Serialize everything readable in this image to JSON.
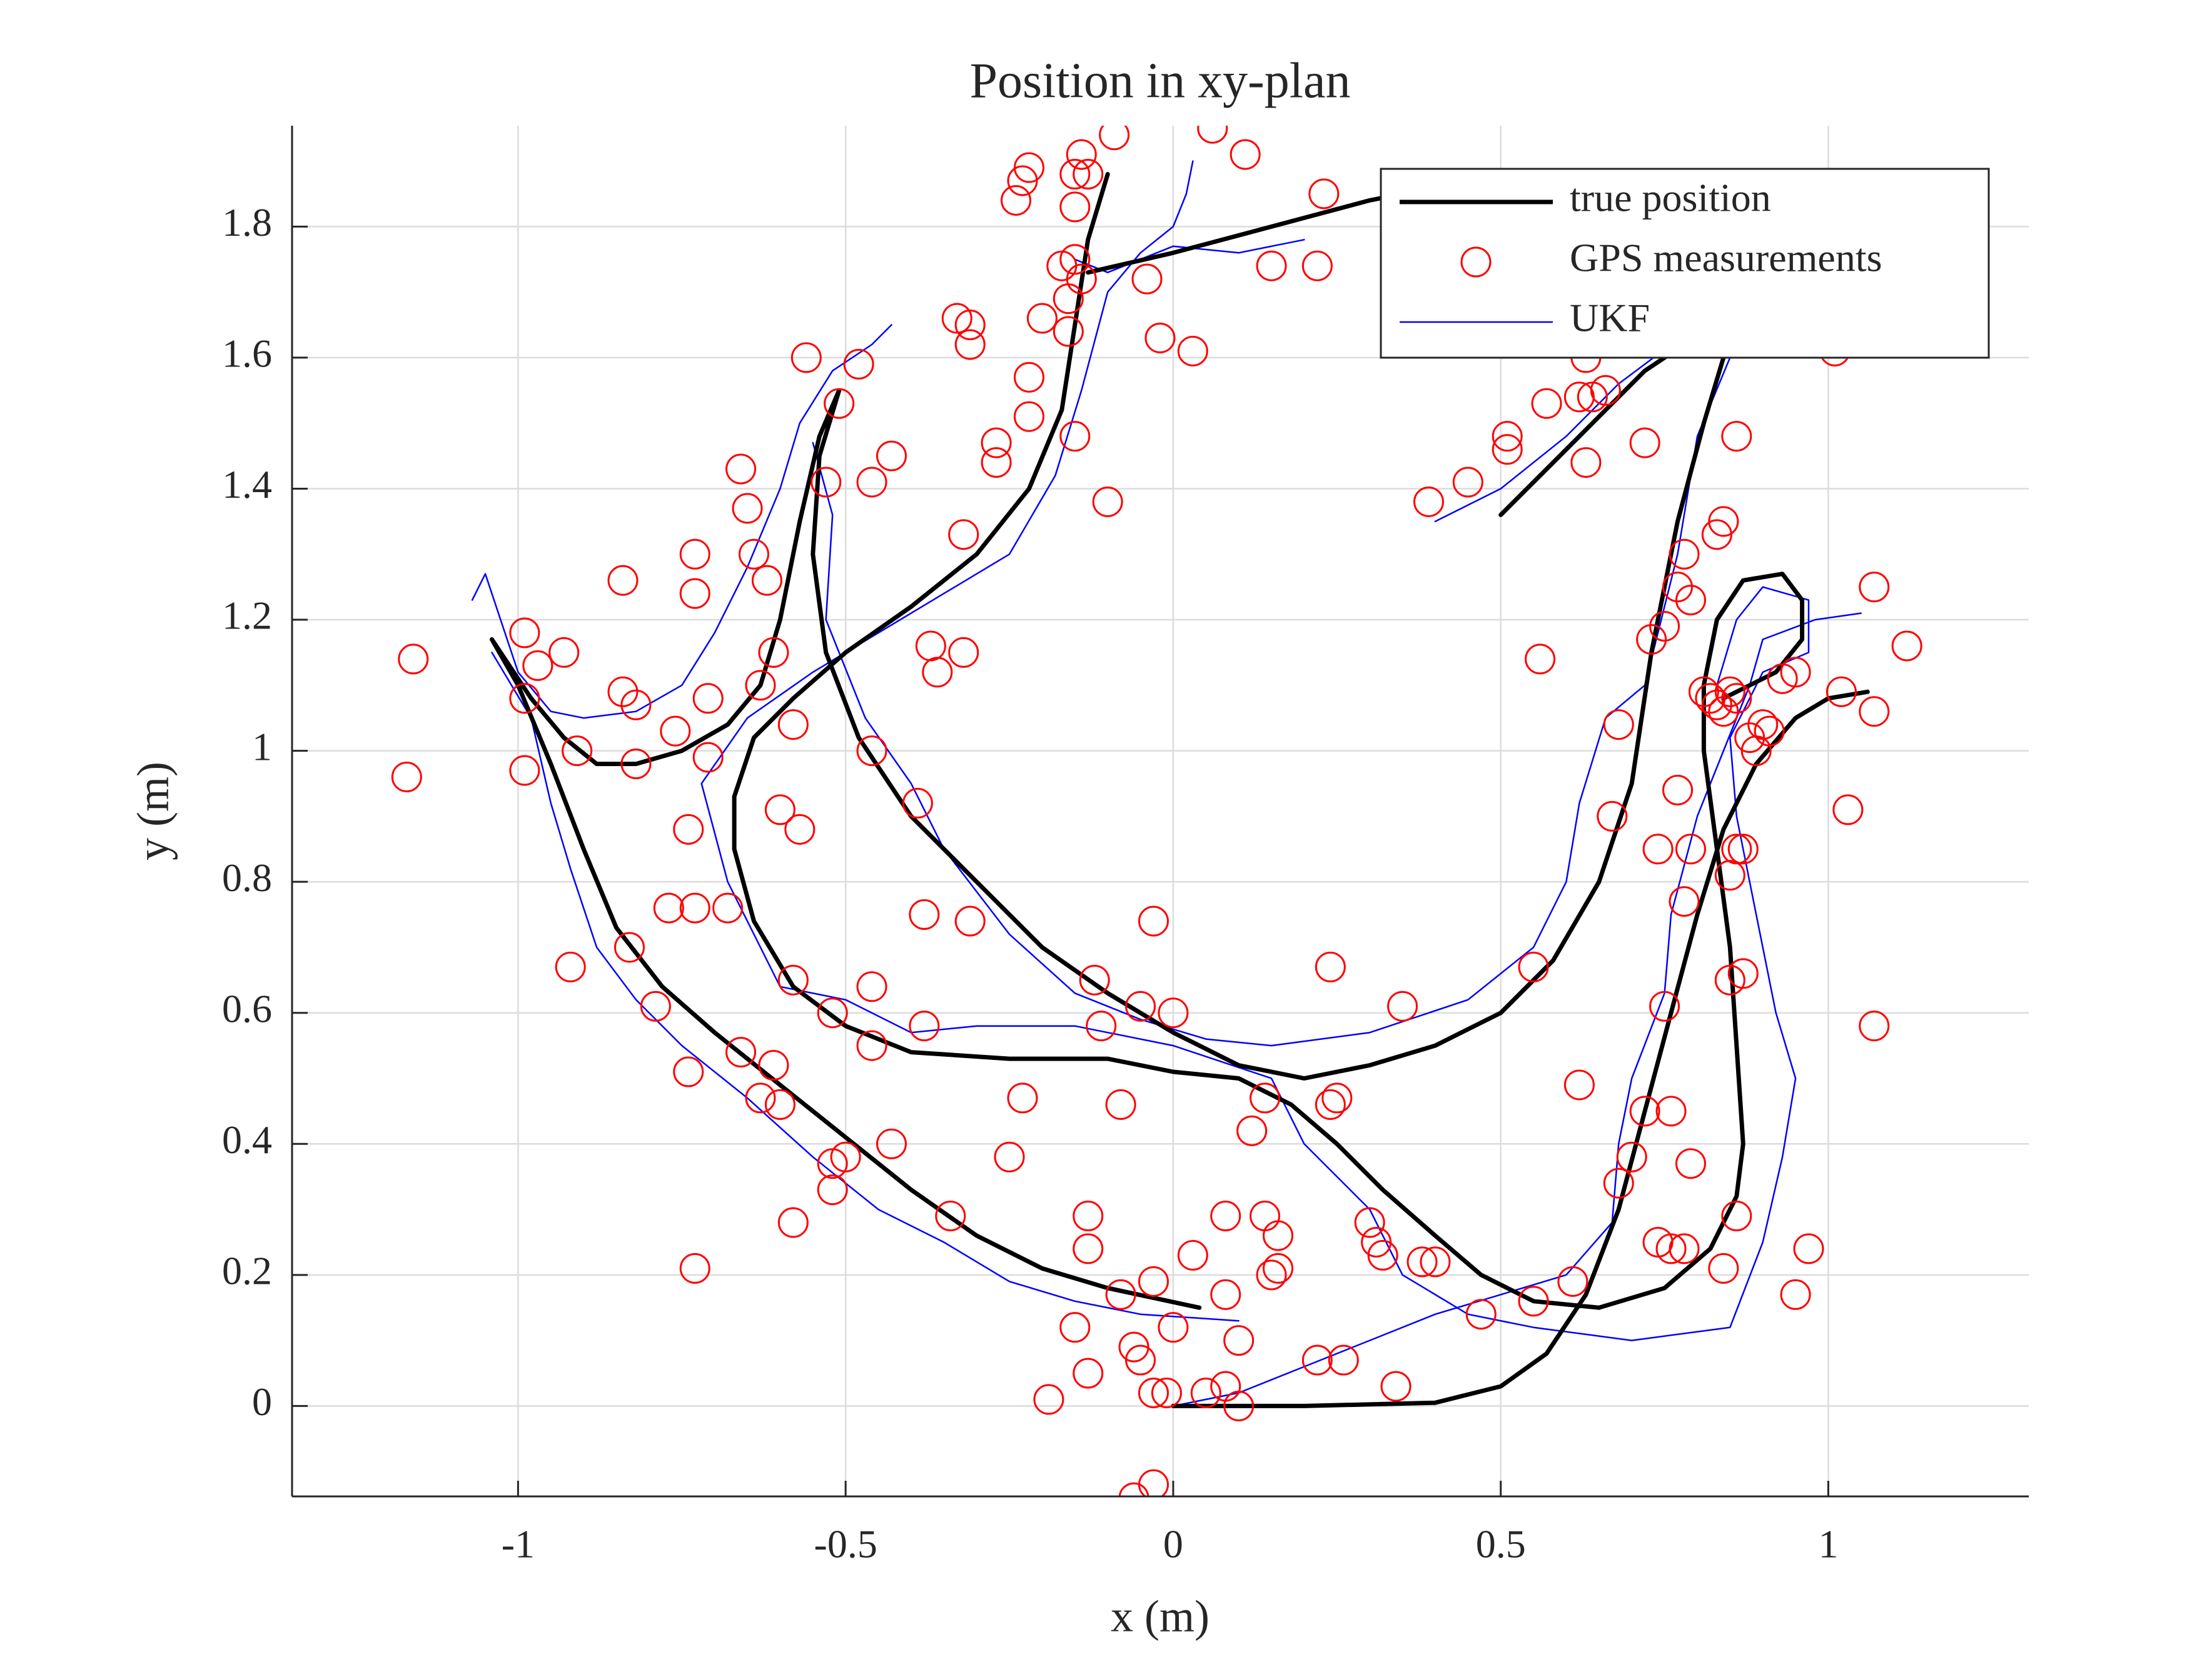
{
  "chart_data": {
    "type": "line",
    "title": "Position in xy-plan",
    "xlabel": "x (m)",
    "ylabel": "y (m)",
    "xlim": [
      -1.345,
      1.306
    ],
    "ylim": [
      -0.138,
      1.954
    ],
    "xticks": [
      -1,
      -0.5,
      0,
      0.5,
      1
    ],
    "yticks": [
      0,
      0.2,
      0.4,
      0.6,
      0.8,
      1,
      1.2,
      1.4,
      1.6,
      1.8
    ],
    "grid": true,
    "legend": "upper right",
    "series": [
      {
        "name": "true position",
        "type": "line",
        "color": "#000000",
        "x": [
          0,
          0.2,
          0.4,
          0.5,
          0.57,
          0.63,
          0.68,
          0.72,
          0.76,
          0.8,
          0.84,
          0.89,
          0.95,
          1.0,
          1.06,
          null,
          0.84,
          0.92,
          0.96,
          0.96,
          0.93,
          0.87,
          0.83,
          0.81,
          0.81,
          0.83,
          0.85,
          0.86,
          0.87,
          0.86,
          0.82,
          0.75,
          0.65,
          0.55,
          0.47,
          0.4,
          0.32,
          0.25,
          0.18,
          0.1,
          0.0,
          -0.1,
          -0.25,
          -0.4,
          -0.5,
          -0.58,
          -0.64,
          -0.67,
          -0.67,
          -0.64,
          -0.58,
          -0.5,
          -0.4,
          -0.3,
          -0.22,
          -0.17,
          -0.15,
          -0.13,
          -0.1,
          null,
          -0.51,
          -0.54,
          -0.55,
          -0.53,
          -0.48,
          -0.4,
          -0.3,
          -0.2,
          -0.1,
          0.0,
          0.1,
          0.2,
          0.3,
          0.4,
          0.5,
          0.58,
          0.65,
          0.7,
          0.73,
          0.77,
          0.81,
          0.84,
          null,
          -1.04,
          -0.98,
          -0.93,
          -0.88,
          -0.82,
          -0.75,
          -0.68,
          -0.63,
          -0.6,
          -0.57,
          -0.54,
          -0.51,
          null,
          -1.04,
          -1.0,
          -0.95,
          -0.9,
          -0.85,
          -0.78,
          -0.7,
          -0.6,
          -0.5,
          -0.4,
          -0.3,
          -0.2,
          -0.1,
          0.04,
          null,
          -0.13,
          0.0,
          0.15,
          0.3,
          0.35,
          null,
          0.5,
          0.58,
          0.65,
          0.72,
          0.78
        ],
        "values": [
          0,
          0,
          0.005,
          0.03,
          0.08,
          0.17,
          0.3,
          0.45,
          0.6,
          0.75,
          0.88,
          0.98,
          1.05,
          1.08,
          1.09,
          null,
          1.08,
          1.12,
          1.17,
          1.23,
          1.27,
          1.26,
          1.2,
          1.1,
          1.0,
          0.85,
          0.7,
          0.55,
          0.4,
          0.32,
          0.24,
          0.18,
          0.15,
          0.16,
          0.2,
          0.26,
          0.33,
          0.4,
          0.46,
          0.5,
          0.51,
          0.53,
          0.53,
          0.54,
          0.58,
          0.64,
          0.74,
          0.85,
          0.93,
          1.02,
          1.08,
          1.15,
          1.22,
          1.3,
          1.4,
          1.52,
          1.65,
          1.78,
          1.88,
          null,
          1.55,
          1.45,
          1.3,
          1.15,
          1.02,
          0.9,
          0.8,
          0.7,
          0.63,
          0.57,
          0.52,
          0.5,
          0.52,
          0.55,
          0.6,
          0.68,
          0.8,
          0.95,
          1.15,
          1.35,
          1.5,
          1.6,
          null,
          1.17,
          1.08,
          1.02,
          0.98,
          0.98,
          1.0,
          1.04,
          1.1,
          1.2,
          1.35,
          1.48,
          1.55,
          null,
          1.17,
          1.1,
          0.98,
          0.85,
          0.73,
          0.64,
          0.57,
          0.49,
          0.41,
          0.33,
          0.26,
          0.21,
          0.18,
          0.15,
          null,
          1.73,
          1.76,
          1.8,
          1.84,
          1.85,
          null,
          1.36,
          1.44,
          1.51,
          1.58,
          1.62
        ]
      },
      {
        "name": "GPS measurements",
        "type": "scatter",
        "color": "#ff0000",
        "x": [
          -1.16,
          -1.17,
          -0.99,
          -0.97,
          -0.93,
          -0.99,
          -0.99,
          -0.91,
          -0.84,
          -0.84,
          -0.82,
          -0.82,
          -0.76,
          -0.73,
          -0.73,
          -0.71,
          -0.71,
          -0.66,
          -0.65,
          -0.64,
          -0.62,
          -0.61,
          -0.63,
          -0.58,
          -0.56,
          -0.51,
          -0.53,
          -0.48,
          -0.46,
          -0.43,
          -0.46,
          -0.6,
          -0.57,
          -0.39,
          -0.74,
          -0.77,
          -0.73,
          -0.68,
          -0.38,
          -0.31,
          -0.83,
          -0.92,
          -0.79,
          -0.74,
          -0.66,
          -0.61,
          -0.63,
          -0.6,
          -0.58,
          -0.52,
          -0.46,
          -0.46,
          -0.38,
          -0.5,
          -0.52,
          -0.52,
          -0.43,
          -0.58,
          -0.34,
          -0.73,
          -0.33,
          -0.31,
          -0.31,
          -0.24,
          -0.23,
          -0.22,
          -0.15,
          -0.14,
          -0.09,
          -0.13,
          -0.15,
          -0.17,
          -0.15,
          -0.14,
          -0.16,
          -0.2,
          -0.16,
          -0.22,
          -0.22,
          -0.15,
          -0.27,
          -0.27,
          -0.1,
          -0.32,
          -0.37,
          -0.36,
          -0.32,
          -0.04,
          -0.02,
          0.03,
          0.06,
          0.11,
          0.15,
          0.22,
          0.23,
          -0.03,
          0.24,
          -0.12,
          -0.05,
          0.0,
          -0.11,
          0.35,
          -0.23,
          -0.08,
          0.14,
          0.25,
          0.24,
          0.12,
          -0.25,
          0.3,
          0.31,
          0.32,
          0.16,
          0.14,
          0.08,
          -0.13,
          -0.13,
          0.15,
          0.16,
          0.38,
          0.4,
          -0.08,
          -0.03,
          0.03,
          0.08,
          0.0,
          -0.15,
          -0.06,
          -0.05,
          0.1,
          0.22,
          0.26,
          -0.13,
          -0.03,
          -0.01,
          0.05,
          0.08,
          0.1,
          0.34,
          -0.19,
          -0.03,
          -0.06,
          0.47,
          0.55,
          0.61,
          0.62,
          0.55,
          0.39,
          0.45,
          0.51,
          0.51,
          0.57,
          0.62,
          0.64,
          0.66,
          0.63,
          0.63,
          0.72,
          0.56,
          0.68,
          0.67,
          0.74,
          0.73,
          0.75,
          0.77,
          0.79,
          0.78,
          0.83,
          0.84,
          0.86,
          0.77,
          0.79,
          0.78,
          0.85,
          0.86,
          0.87,
          0.85,
          0.87,
          0.75,
          0.72,
          0.76,
          0.7,
          0.68,
          0.79,
          0.74,
          0.76,
          0.78,
          0.84,
          0.86,
          0.95,
          0.97,
          0.81,
          0.82,
          0.83,
          0.84,
          0.85,
          0.86,
          0.88,
          0.89,
          0.9,
          0.91,
          0.93,
          0.95,
          1.01,
          1.02,
          1.03,
          1.07,
          1.07,
          1.12,
          1.07
        ],
        "values": [
          1.14,
          0.96,
          1.18,
          1.13,
          1.15,
          1.08,
          0.97,
          1.0,
          1.26,
          1.09,
          1.07,
          0.98,
          1.03,
          1.3,
          1.24,
          1.08,
          0.99,
          1.43,
          1.37,
          1.3,
          1.26,
          1.15,
          1.1,
          1.04,
          1.6,
          1.53,
          1.41,
          1.59,
          1.41,
          1.45,
          1.0,
          0.91,
          0.88,
          0.92,
          0.88,
          0.76,
          0.76,
          0.76,
          0.75,
          0.74,
          0.7,
          0.67,
          0.61,
          0.51,
          0.54,
          0.52,
          0.47,
          0.46,
          0.65,
          0.6,
          0.64,
          0.55,
          0.58,
          0.38,
          0.37,
          0.33,
          0.4,
          0.28,
          0.29,
          0.21,
          1.66,
          1.65,
          1.62,
          1.84,
          1.87,
          1.89,
          1.88,
          1.91,
          1.94,
          1.88,
          1.83,
          1.74,
          1.75,
          1.72,
          1.69,
          1.66,
          1.64,
          1.57,
          1.51,
          1.48,
          1.47,
          1.44,
          1.38,
          1.33,
          1.16,
          1.12,
          1.15,
          1.72,
          1.63,
          1.61,
          1.95,
          1.91,
          1.74,
          1.74,
          1.85,
          0.74,
          0.67,
          0.65,
          0.61,
          0.6,
          0.58,
          0.61,
          0.47,
          0.46,
          0.47,
          0.47,
          0.46,
          0.42,
          0.38,
          0.28,
          0.25,
          0.23,
          0.26,
          0.29,
          0.29,
          0.29,
          0.24,
          0.2,
          0.21,
          0.22,
          0.22,
          0.17,
          0.19,
          0.23,
          0.17,
          0.12,
          0.12,
          0.09,
          0.07,
          0.1,
          0.07,
          0.07,
          0.05,
          0.02,
          0.02,
          0.02,
          0.03,
          0.0,
          0.03,
          0.01,
          -0.12,
          -0.14,
          0.14,
          0.16,
          0.19,
          0.49,
          0.67,
          1.38,
          1.41,
          1.48,
          1.46,
          1.53,
          1.54,
          1.54,
          1.55,
          1.6,
          1.44,
          1.47,
          1.14,
          1.04,
          0.9,
          0.85,
          1.17,
          1.19,
          1.25,
          1.23,
          1.3,
          1.33,
          1.35,
          1.48,
          0.94,
          0.85,
          0.77,
          0.81,
          0.85,
          0.85,
          0.65,
          0.66,
          0.61,
          0.45,
          0.45,
          0.38,
          0.34,
          0.37,
          0.25,
          0.24,
          0.24,
          0.21,
          0.29,
          0.17,
          0.24,
          1.09,
          1.08,
          1.07,
          1.06,
          1.09,
          1.08,
          1.02,
          1.0,
          1.04,
          1.03,
          1.11,
          1.12,
          1.61,
          1.09,
          0.91,
          1.25,
          1.06,
          1.16,
          0.58
        ]
      },
      {
        "name": "UKF",
        "type": "line",
        "color": "#0000ff",
        "x": [
          0,
          0.1,
          0.2,
          0.3,
          0.4,
          0.5,
          0.6,
          0.67,
          0.68,
          0.7,
          0.75,
          0.76,
          0.8,
          0.84,
          0.88,
          0.9,
          0.98,
          1.05,
          null,
          0.83,
          0.86,
          0.9,
          0.97,
          0.97,
          0.9,
          0.85,
          0.86,
          0.89,
          0.92,
          0.95,
          0.93,
          0.9,
          0.85,
          0.7,
          0.55,
          0.45,
          0.35,
          0.3,
          0.2,
          0.15,
          0.0,
          -0.15,
          -0.3,
          -0.4,
          -0.5,
          -0.6,
          -0.68,
          -0.72,
          -0.65,
          -0.55,
          -0.45,
          -0.35,
          -0.25,
          -0.18,
          -0.14,
          -0.1,
          -0.05,
          0.0,
          0.02,
          0.03,
          null,
          -0.55,
          -0.52,
          -0.53,
          -0.47,
          -0.4,
          -0.35,
          -0.25,
          -0.15,
          -0.05,
          0.05,
          0.15,
          0.3,
          0.45,
          0.55,
          0.6,
          0.62,
          0.66,
          0.72,
          0.77,
          0.8,
          0.85,
          null,
          -1.07,
          -1.05,
          -1.0,
          -0.95,
          -0.9,
          -0.82,
          -0.75,
          -0.7,
          -0.65,
          -0.6,
          -0.57,
          -0.52,
          -0.46,
          -0.43,
          null,
          -1.04,
          -0.98,
          -0.95,
          -0.92,
          -0.88,
          -0.82,
          -0.75,
          -0.65,
          -0.55,
          -0.45,
          -0.35,
          -0.25,
          -0.15,
          -0.05,
          0.1,
          null,
          -0.15,
          -0.1,
          0.0,
          0.1,
          0.2,
          null,
          0.4,
          0.5,
          0.6,
          0.68,
          0.76
        ],
        "values": [
          0,
          0.02,
          0.06,
          0.1,
          0.14,
          0.17,
          0.2,
          0.28,
          0.4,
          0.5,
          0.63,
          0.75,
          0.9,
          1.0,
          1.1,
          1.17,
          1.2,
          1.21,
          null,
          1.1,
          1.2,
          1.25,
          1.23,
          1.15,
          1.12,
          1.02,
          0.9,
          0.75,
          0.6,
          0.5,
          0.38,
          0.25,
          0.12,
          0.1,
          0.12,
          0.14,
          0.2,
          0.3,
          0.4,
          0.5,
          0.55,
          0.58,
          0.58,
          0.57,
          0.62,
          0.64,
          0.8,
          0.95,
          1.05,
          1.12,
          1.18,
          1.24,
          1.3,
          1.42,
          1.55,
          1.7,
          1.76,
          1.8,
          1.85,
          1.9,
          null,
          1.47,
          1.36,
          1.2,
          1.05,
          0.95,
          0.85,
          0.72,
          0.63,
          0.59,
          0.56,
          0.55,
          0.57,
          0.62,
          0.7,
          0.8,
          0.92,
          1.05,
          1.1,
          1.3,
          1.48,
          1.6,
          null,
          1.23,
          1.27,
          1.12,
          1.06,
          1.05,
          1.06,
          1.1,
          1.18,
          1.28,
          1.4,
          1.5,
          1.58,
          1.62,
          1.65,
          null,
          1.15,
          1.05,
          0.92,
          0.82,
          0.7,
          0.62,
          0.55,
          0.47,
          0.38,
          0.3,
          0.25,
          0.19,
          0.16,
          0.14,
          0.13,
          null,
          1.75,
          1.73,
          1.77,
          1.76,
          1.78,
          null,
          1.35,
          1.4,
          1.48,
          1.56,
          1.62
        ]
      }
    ]
  }
}
